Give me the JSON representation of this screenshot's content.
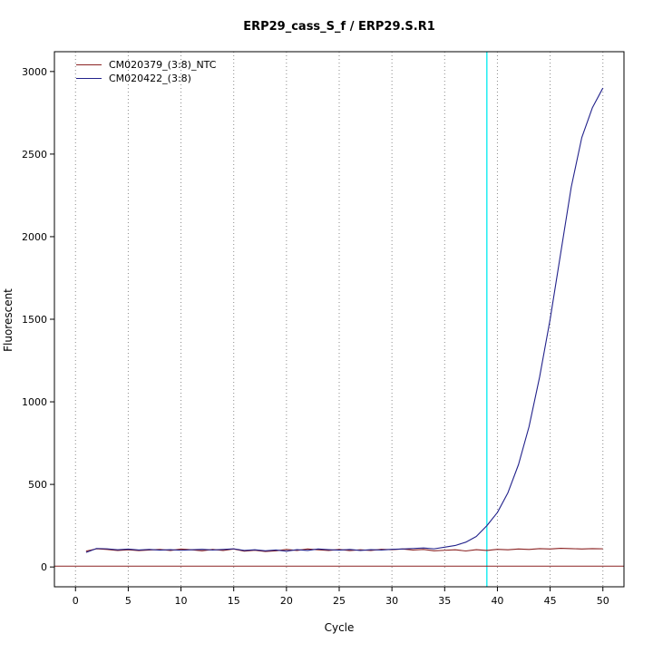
{
  "chart_data": {
    "type": "line",
    "title": "ERP29_cass_S_f / ERP29.S.R1",
    "xlabel": "Cycle",
    "ylabel": "Fluorescent",
    "xlim": [
      0,
      50
    ],
    "ylim": [
      0,
      3000
    ],
    "xticks": [
      0,
      5,
      10,
      15,
      20,
      25,
      30,
      35,
      40,
      45,
      50
    ],
    "yticks": [
      0,
      500,
      1000,
      1500,
      2000,
      2500,
      3000
    ],
    "grid": "dotted-vertical",
    "legend_position": "top-left",
    "x": [
      1,
      2,
      3,
      4,
      5,
      6,
      7,
      8,
      9,
      10,
      11,
      12,
      13,
      14,
      15,
      16,
      17,
      18,
      19,
      20,
      21,
      22,
      23,
      24,
      25,
      26,
      27,
      28,
      29,
      30,
      31,
      32,
      33,
      34,
      35,
      36,
      37,
      38,
      39,
      40,
      41,
      42,
      43,
      44,
      45,
      46,
      47,
      48,
      49,
      50
    ],
    "series": [
      {
        "name": "CM020379_(3:8)_NTC",
        "color": "#8b2323",
        "values": [
          96,
          110,
          106,
          100,
          104,
          99,
          103,
          106,
          100,
          108,
          104,
          98,
          106,
          100,
          109,
          96,
          101,
          94,
          98,
          106,
          100,
          109,
          104,
          100,
          106,
          99,
          104,
          100,
          107,
          105,
          109,
          103,
          106,
          98,
          101,
          104,
          97,
          105,
          100,
          107,
          104,
          109,
          106,
          111,
          109,
          113,
          111,
          109,
          111,
          110
        ]
      },
      {
        "name": "CM020422_(3:8)",
        "color": "#22228b",
        "values": [
          88,
          112,
          110,
          104,
          108,
          103,
          106,
          102,
          105,
          101,
          104,
          107,
          103,
          106,
          110,
          100,
          104,
          98,
          103,
          96,
          105,
          100,
          109,
          105,
          102,
          106,
          100,
          105,
          103,
          107,
          109,
          112,
          115,
          110,
          120,
          130,
          150,
          185,
          250,
          330,
          450,
          620,
          850,
          1150,
          1500,
          1900,
          2300,
          2600,
          2780,
          2900
        ]
      }
    ],
    "threshold_line": {
      "y": 5,
      "color": "#8b2323"
    },
    "marker_line": {
      "x": 39,
      "color": "#00eaf0"
    },
    "colors": {
      "axis": "#000000",
      "grid": "#8a8a8a",
      "background": "#ffffff"
    }
  }
}
